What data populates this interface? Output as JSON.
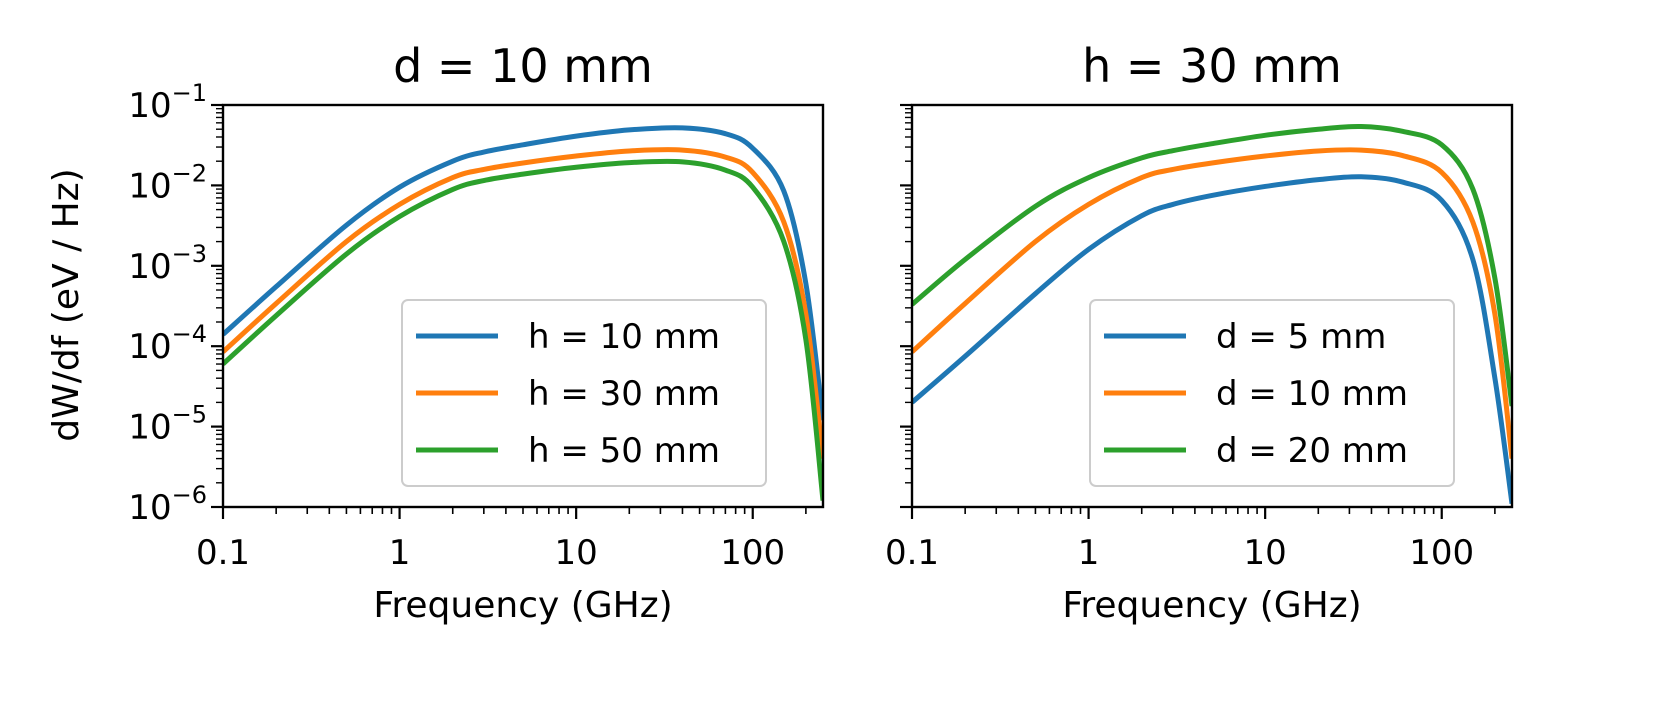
{
  "figure": {
    "ylabel": "dW/df (eV / Hz)"
  },
  "chart_data": [
    {
      "type": "line",
      "title": "d = 10 mm",
      "xlabel": "Frequency (GHz)",
      "ylabel": "dW/df (eV / Hz)",
      "xscale": "log",
      "yscale": "log",
      "xlim": [
        0.1,
        250
      ],
      "ylim": [
        1e-06,
        0.1
      ],
      "xticks": [
        {
          "value": 0.1,
          "label": "0.1"
        },
        {
          "value": 1,
          "label": "1"
        },
        {
          "value": 10,
          "label": "10"
        },
        {
          "value": 100,
          "label": "100"
        }
      ],
      "yticks": [
        {
          "value": 0.1,
          "base": "10",
          "exp": "−1"
        },
        {
          "value": 0.01,
          "base": "10",
          "exp": "−2"
        },
        {
          "value": 0.001,
          "base": "10",
          "exp": "−3"
        },
        {
          "value": 0.0001,
          "base": "10",
          "exp": "−4"
        },
        {
          "value": 1e-05,
          "base": "10",
          "exp": "−5"
        },
        {
          "value": 1e-06,
          "base": "10",
          "exp": "−6"
        }
      ],
      "legend_position": "lower right",
      "grid": false,
      "series": [
        {
          "name": "h = 10 mm",
          "color": "#1f77b4",
          "x": [
            0.1,
            0.2,
            0.5,
            1,
            2,
            3,
            5,
            10,
            20,
            40,
            70,
            100,
            150,
            200,
            250
          ],
          "y": [
            0.00014,
            0.00055,
            0.0032,
            0.0095,
            0.02,
            0.026,
            0.032,
            0.041,
            0.049,
            0.052,
            0.044,
            0.029,
            0.0085,
            0.0006,
            1.2e-05
          ]
        },
        {
          "name": "h = 30 mm",
          "color": "#ff7f0e",
          "x": [
            0.1,
            0.2,
            0.5,
            1,
            2,
            3,
            5,
            10,
            20,
            40,
            70,
            100,
            150,
            200,
            250
          ],
          "y": [
            8.5e-05,
            0.00034,
            0.002,
            0.0058,
            0.0125,
            0.0158,
            0.019,
            0.0232,
            0.0268,
            0.0275,
            0.0225,
            0.0145,
            0.0035,
            0.00025,
            4e-06
          ]
        },
        {
          "name": "h = 50 mm",
          "color": "#2ca02c",
          "x": [
            0.1,
            0.2,
            0.5,
            1,
            2,
            3,
            5,
            10,
            20,
            40,
            70,
            100,
            150,
            200,
            250
          ],
          "y": [
            6e-05,
            0.00024,
            0.0014,
            0.0041,
            0.0089,
            0.0115,
            0.0138,
            0.0168,
            0.0192,
            0.0196,
            0.0155,
            0.0095,
            0.002,
            0.00012,
            1.2e-06
          ]
        }
      ]
    },
    {
      "type": "line",
      "title": "h = 30 mm",
      "xlabel": "Frequency (GHz)",
      "ylabel": "",
      "xscale": "log",
      "yscale": "log",
      "xlim": [
        0.1,
        250
      ],
      "ylim": [
        1e-06,
        0.1
      ],
      "xticks": [
        {
          "value": 0.1,
          "label": "0.1"
        },
        {
          "value": 1,
          "label": "1"
        },
        {
          "value": 10,
          "label": "10"
        },
        {
          "value": 100,
          "label": "100"
        }
      ],
      "legend_position": "lower right",
      "grid": false,
      "series": [
        {
          "name": "d = 5 mm",
          "color": "#1f77b4",
          "x": [
            0.1,
            0.2,
            0.5,
            1,
            2,
            3,
            5,
            10,
            20,
            35,
            60,
            100,
            150,
            200,
            250
          ],
          "y": [
            2e-05,
            7.5e-05,
            0.00045,
            0.0016,
            0.0042,
            0.0058,
            0.0075,
            0.0097,
            0.0118,
            0.0128,
            0.011,
            0.0065,
            0.0012,
            4e-05,
            1.1e-06
          ]
        },
        {
          "name": "d = 10 mm",
          "color": "#ff7f0e",
          "x": [
            0.1,
            0.2,
            0.5,
            1,
            2,
            3,
            5,
            10,
            20,
            35,
            60,
            100,
            150,
            200,
            250
          ],
          "y": [
            8.5e-05,
            0.00034,
            0.002,
            0.0058,
            0.0125,
            0.0158,
            0.019,
            0.0232,
            0.0268,
            0.0275,
            0.0235,
            0.0145,
            0.0035,
            0.00025,
            4e-06
          ]
        },
        {
          "name": "d = 20 mm",
          "color": "#2ca02c",
          "x": [
            0.1,
            0.2,
            0.5,
            1,
            2,
            3,
            5,
            10,
            20,
            35,
            60,
            100,
            150,
            200,
            250
          ],
          "y": [
            0.00033,
            0.0012,
            0.0055,
            0.0125,
            0.022,
            0.027,
            0.033,
            0.042,
            0.05,
            0.054,
            0.047,
            0.032,
            0.009,
            0.0007,
            1.8e-05
          ]
        }
      ]
    }
  ]
}
